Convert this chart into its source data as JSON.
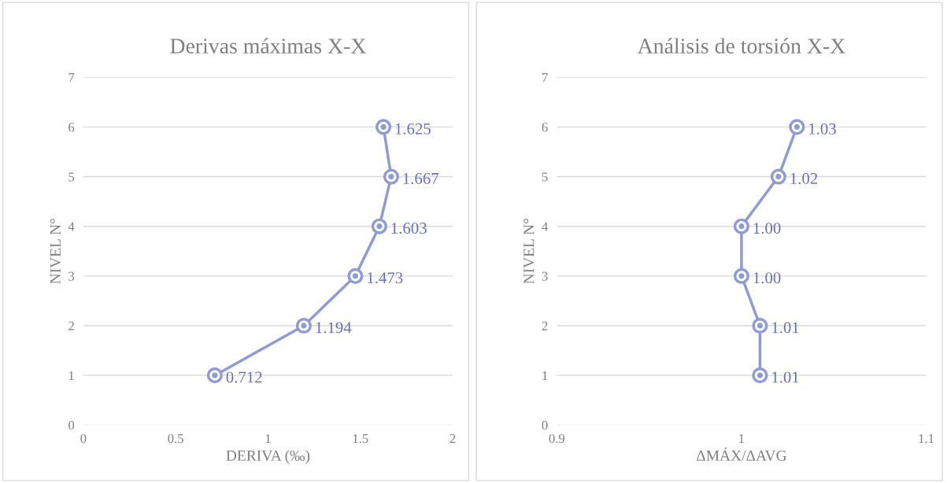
{
  "chart_data": [
    {
      "type": "line",
      "orientation": "horizontal",
      "title": "Derivas máximas X-X",
      "xlabel": "DERIVA (‰)",
      "ylabel": "NIVEL N°",
      "series": [
        {
          "color": "#8e9bd4",
          "x": [
            1,
            2,
            3,
            4,
            5,
            6
          ],
          "values": [
            0.712,
            1.194,
            1.473,
            1.603,
            1.667,
            1.625
          ]
        }
      ],
      "data_labels": true,
      "xlim": [
        0,
        2
      ],
      "xticks": [
        0,
        0.5,
        1,
        1.5,
        2
      ],
      "ylim": [
        0,
        7
      ],
      "yticks": [
        0,
        1,
        2,
        3,
        4,
        5,
        6,
        7
      ],
      "grid": "y",
      "marker": "circle",
      "line_style": "solid"
    },
    {
      "type": "line",
      "orientation": "horizontal",
      "title": "Análisis de torsión X-X",
      "xlabel": "ΔMÁX/ΔAVG",
      "ylabel": "NIVEL N°",
      "series": [
        {
          "color": "#8e9bd4",
          "x": [
            1,
            2,
            3,
            4,
            5,
            6
          ],
          "values": [
            1.01,
            1.01,
            1.0,
            1.0,
            1.02,
            1.03
          ],
          "value_labels": [
            "1.01",
            "1.01",
            "1.00",
            "1.00",
            "1.02",
            "1.03"
          ]
        }
      ],
      "xlim": [
        0.9,
        1.1
      ],
      "xticks": [
        0.9,
        1,
        1.1
      ],
      "ylim": [
        0,
        7
      ],
      "yticks": [
        0,
        1,
        2,
        3,
        4,
        5,
        6,
        7
      ],
      "grid": "y",
      "marker": "circle",
      "line_style": "solid"
    }
  ]
}
